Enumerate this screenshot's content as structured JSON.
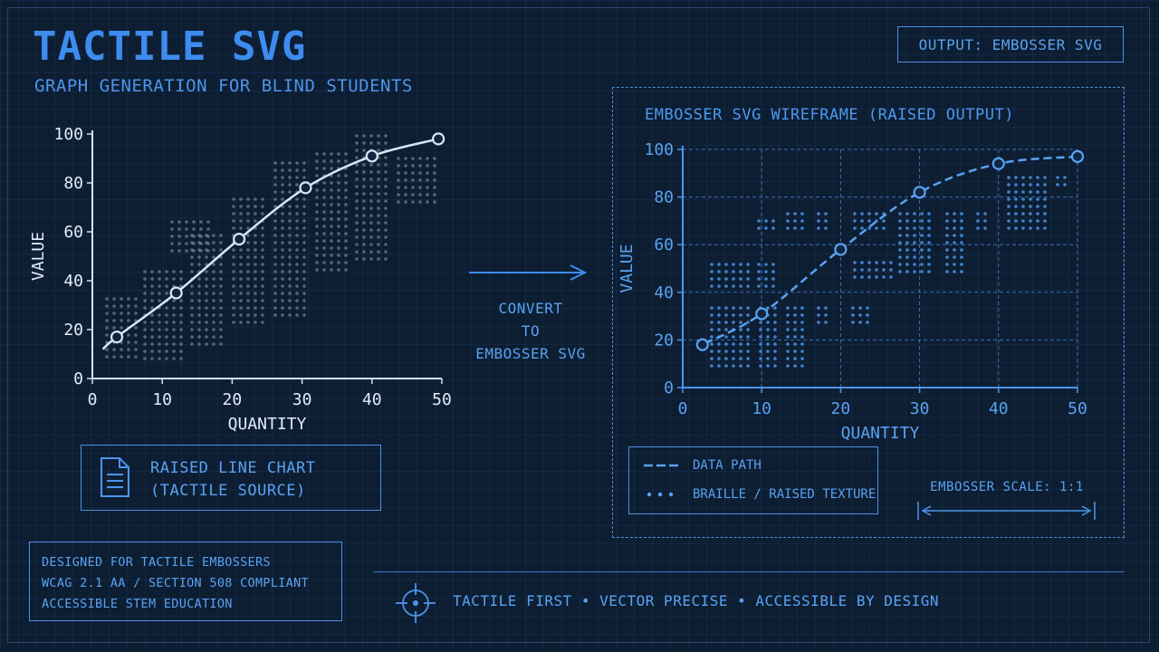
{
  "header": {
    "title": "TACTILE SVG",
    "subtitle": "GRAPH GENERATION FOR BLIND STUDENTS",
    "output_tag": "OUTPUT: EMBOSSER SVG"
  },
  "convert": {
    "label": "CONVERT\nTO\nEMBOSSER SVG"
  },
  "source": {
    "label": "RAISED LINE CHART\n(TACTILE SOURCE)",
    "icon": "document-icon"
  },
  "wireframe": {
    "title": "EMBOSSER SVG WIREFRAME (RAISED OUTPUT)"
  },
  "legend": {
    "data_path": "DATA PATH",
    "texture": "BRAILLE / RAISED TEXTURE",
    "scale": "EMBOSSER SCALE: 1:1"
  },
  "info": {
    "lines": [
      "DESIGNED FOR TACTILE EMBOSSERS",
      "WCAG 2.1 AA / SECTION 508 COMPLIANT",
      "ACCESSIBLE STEM EDUCATION"
    ]
  },
  "footer": {
    "tagline": "TACTILE FIRST • VECTOR PRECISE • ACCESSIBLE BY DESIGN",
    "icon": "crosshair-icon"
  },
  "colors": {
    "background": "#0d1e33",
    "accent": "#3d8cf0",
    "line_light": "#c8dcf0"
  },
  "chart_data": [
    {
      "type": "line",
      "xlabel": "QUANTITY",
      "ylabel": "VALUE",
      "xlim": [
        0,
        50
      ],
      "ylim": [
        0,
        100
      ],
      "xticks": [
        0,
        10,
        20,
        30,
        40,
        50
      ],
      "yticks": [
        0,
        20,
        40,
        60,
        80,
        100
      ],
      "grid": false,
      "points": [
        [
          3.5,
          17
        ],
        [
          12,
          35
        ],
        [
          21,
          57
        ],
        [
          30.5,
          78
        ],
        [
          40,
          91
        ],
        [
          49.5,
          98
        ]
      ]
    },
    {
      "type": "line",
      "xlabel": "QUANTITY",
      "ylabel": "VALUE",
      "xlim": [
        0,
        50
      ],
      "ylim": [
        0,
        100
      ],
      "xticks": [
        0,
        10,
        20,
        30,
        40,
        50
      ],
      "yticks": [
        0,
        20,
        40,
        60,
        80,
        100
      ],
      "grid": true,
      "points": [
        [
          2.5,
          18
        ],
        [
          10,
          31
        ],
        [
          20,
          58
        ],
        [
          30,
          82
        ],
        [
          40,
          94
        ],
        [
          50,
          97
        ]
      ]
    }
  ]
}
